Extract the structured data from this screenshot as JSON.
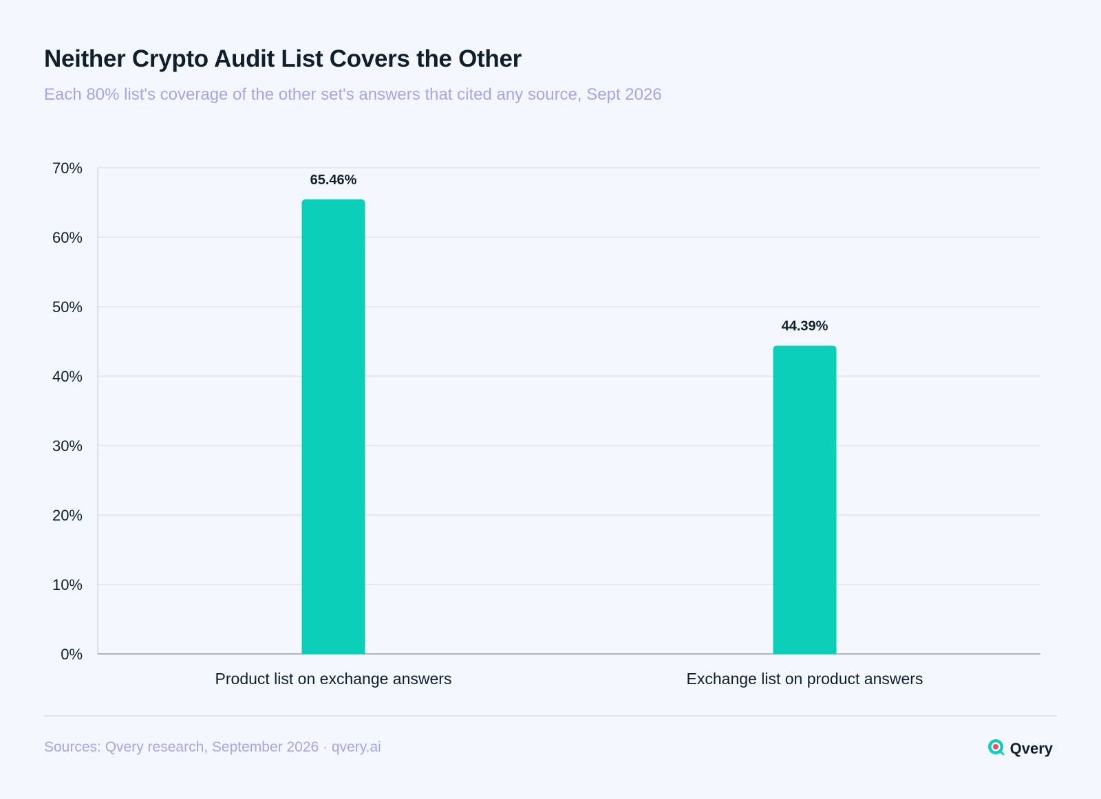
{
  "header": {
    "title": "Neither Crypto Audit List Covers the Other",
    "subtitle": "Each 80% list's coverage of the other set's answers that cited any source, Sept 2026"
  },
  "chart_data": {
    "type": "bar",
    "categories": [
      "Product list on exchange answers",
      "Exchange list on product answers"
    ],
    "values": [
      65.46,
      44.39
    ],
    "value_labels": [
      "65.46%",
      "44.39%"
    ],
    "ylim": [
      0,
      70
    ],
    "yticks": [
      0,
      10,
      20,
      30,
      40,
      50,
      60,
      70
    ],
    "ytick_labels": [
      "0%",
      "10%",
      "20%",
      "30%",
      "40%",
      "50%",
      "60%",
      "70%"
    ],
    "xlabel": "",
    "ylabel": "",
    "grid": true,
    "bar_color": "#0ccfba"
  },
  "footer": {
    "source": "Sources: Qvery research, September 2026 · qvery.ai",
    "brand": "Qvery",
    "brand_icon": "qvery-logo-icon"
  },
  "colors": {
    "background": "#f4f7fd",
    "title": "#0f1f2c",
    "subtitle": "#a3a6e8",
    "bar": "#0ccfba",
    "grid": "#dfe3ec"
  }
}
